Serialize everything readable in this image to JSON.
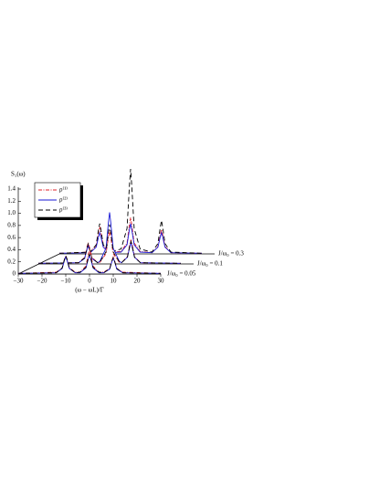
{
  "chart_data": {
    "type": "waterfall",
    "x_label": "(ω − ωL)/Γ",
    "y_label": "S₁(ω)",
    "xlim": [
      -30,
      30
    ],
    "ylim": [
      0,
      1.4
    ],
    "xticks": [
      {
        "value": -30,
        "label": "−30"
      },
      {
        "value": -20,
        "label": "−20"
      },
      {
        "value": -10,
        "label": "−10"
      },
      0,
      10,
      20,
      30
    ],
    "yticks": [
      0,
      0.2,
      0.4,
      0.6,
      0.8,
      {
        "value": 1,
        "label": "1.0"
      },
      1.2,
      1.4
    ],
    "legend_position": "upper left",
    "series": [
      {
        "name": "ρ⁽¹⁾",
        "color": "#e0202a",
        "dash": "dash-dot"
      },
      {
        "name": "ρ⁽²⁾",
        "color": "#1a1ad6",
        "dash": "solid"
      },
      {
        "name": "ρ⁽³⁾",
        "color": "#000000",
        "dash": "dashed"
      }
    ],
    "traces": [
      {
        "label": "J/ω₀ = 0.05",
        "x": [
          -30,
          -14,
          -11.5,
          -10.5,
          -10,
          -9.5,
          -8.5,
          -6,
          -4,
          -1.5,
          -0.5,
          0,
          0.5,
          1.5,
          4,
          6,
          8.5,
          9.5,
          10,
          10.5,
          11.5,
          14,
          30
        ],
        "values": [
          [
            0.01,
            0.03,
            0.1,
            0.25,
            0.3,
            0.25,
            0.1,
            0.03,
            0.03,
            0.13,
            0.33,
            0.4,
            0.33,
            0.13,
            0.03,
            0.03,
            0.09,
            0.23,
            0.28,
            0.23,
            0.09,
            0.03,
            0.01
          ],
          [
            0.01,
            0.02,
            0.09,
            0.23,
            0.28,
            0.23,
            0.09,
            0.02,
            0.02,
            0.1,
            0.25,
            0.3,
            0.25,
            0.1,
            0.02,
            0.02,
            0.08,
            0.21,
            0.26,
            0.21,
            0.08,
            0.02,
            0.01
          ],
          [
            0.01,
            0.02,
            0.1,
            0.25,
            0.3,
            0.25,
            0.1,
            0.02,
            0.03,
            0.11,
            0.27,
            0.33,
            0.27,
            0.11,
            0.03,
            0.02,
            0.09,
            0.22,
            0.27,
            0.22,
            0.09,
            0.02,
            0.01
          ]
        ]
      },
      {
        "label": "J/ω₀ = 0.1",
        "x": [
          -30,
          -13,
          -10.5,
          -9.5,
          -9,
          -8.5,
          -7.5,
          -5,
          -4,
          -1.5,
          -0.5,
          0,
          0.5,
          1.5,
          4,
          5,
          7.5,
          8.5,
          9,
          9.5,
          10.5,
          13,
          30
        ],
        "values": [
          [
            0.01,
            0.02,
            0.11,
            0.28,
            0.35,
            0.28,
            0.11,
            0.02,
            0.03,
            0.17,
            0.44,
            0.55,
            0.44,
            0.17,
            0.03,
            0.02,
            0.12,
            0.32,
            0.4,
            0.32,
            0.12,
            0.02,
            0.01
          ],
          [
            0.01,
            0.02,
            0.09,
            0.24,
            0.3,
            0.24,
            0.09,
            0.02,
            0.05,
            0.26,
            0.68,
            0.85,
            0.68,
            0.26,
            0.05,
            0.02,
            0.11,
            0.28,
            0.35,
            0.28,
            0.11,
            0.02,
            0.01
          ],
          [
            0.01,
            0.02,
            0.1,
            0.26,
            0.33,
            0.26,
            0.1,
            0.02,
            0.04,
            0.2,
            0.52,
            0.65,
            0.52,
            0.2,
            0.04,
            0.02,
            0.11,
            0.3,
            0.37,
            0.3,
            0.11,
            0.02,
            0.01
          ]
        ]
      },
      {
        "label": "J/ω₀ = 0.3",
        "x": [
          -30,
          -17,
          -14.5,
          -13.5,
          -13,
          -12.5,
          -11.5,
          -9,
          -4,
          -1.5,
          -0.5,
          0,
          0.5,
          1.5,
          4,
          9,
          11.5,
          12.5,
          13,
          13.5,
          14.5,
          17,
          30
        ],
        "values": [
          [
            0.01,
            0.03,
            0.14,
            0.36,
            0.45,
            0.36,
            0.14,
            0.03,
            0.04,
            0.18,
            0.48,
            0.6,
            0.48,
            0.18,
            0.04,
            0.02,
            0.12,
            0.32,
            0.4,
            0.32,
            0.12,
            0.02,
            0.01
          ],
          [
            0.01,
            0.02,
            0.11,
            0.28,
            0.35,
            0.28,
            0.11,
            0.02,
            0.03,
            0.15,
            0.4,
            0.5,
            0.4,
            0.15,
            0.03,
            0.02,
            0.11,
            0.28,
            0.35,
            0.28,
            0.11,
            0.02,
            0.01
          ],
          [
            0.01,
            0.03,
            0.15,
            0.4,
            0.5,
            0.4,
            0.15,
            0.03,
            0.08,
            0.42,
            1.12,
            1.4,
            1.12,
            0.42,
            0.08,
            0.03,
            0.17,
            0.44,
            0.55,
            0.44,
            0.17,
            0.03,
            0.01
          ]
        ]
      }
    ]
  }
}
